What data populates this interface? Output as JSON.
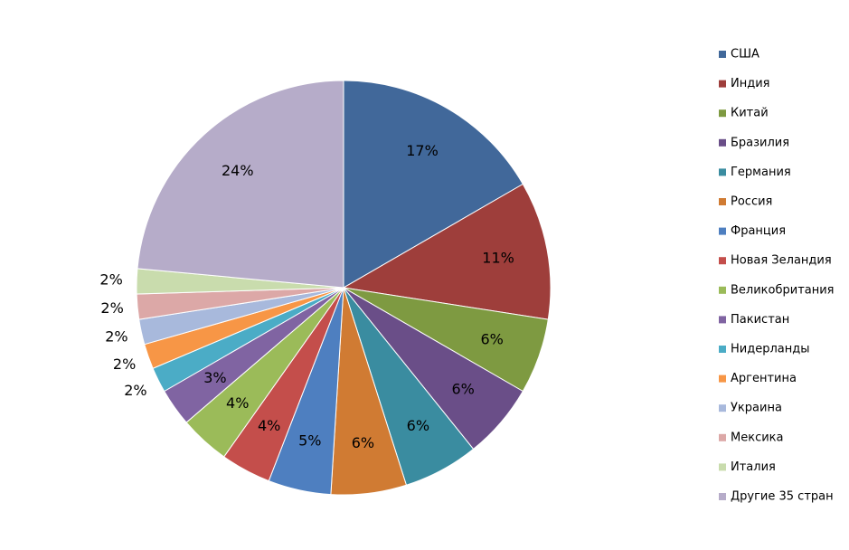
{
  "chart_data": {
    "type": "pie",
    "categories": [
      "США",
      "Индия",
      "Китай",
      "Бразилия",
      "Германия",
      "Россия",
      "Франция",
      "Новая Зеландия",
      "Великобритания",
      "Пакистан",
      "Нидерланды",
      "Аргентина",
      "Украина",
      "Мексика",
      "Италия",
      "Другие 35 стран"
    ],
    "values": [
      17,
      11,
      6,
      6,
      6,
      6,
      5,
      4,
      4,
      3,
      2,
      2,
      2,
      2,
      2,
      24
    ],
    "value_labels": [
      "17%",
      "11%",
      "6%",
      "6%",
      "6%",
      "6%",
      "5%",
      "4%",
      "4%",
      "3%",
      "2%",
      "2%",
      "2%",
      "2%",
      "2%",
      "24%"
    ],
    "colors": [
      "#41689a",
      "#9e3e3b",
      "#7e9a41",
      "#6a4e88",
      "#3a8ca0",
      "#d07b33",
      "#4e7fc0",
      "#c44e4b",
      "#9bbb59",
      "#8064a2",
      "#4bacc6",
      "#f79646",
      "#a8b9dc",
      "#dca8a7",
      "#c9dcad",
      "#b6acc9"
    ],
    "legend": "right"
  }
}
